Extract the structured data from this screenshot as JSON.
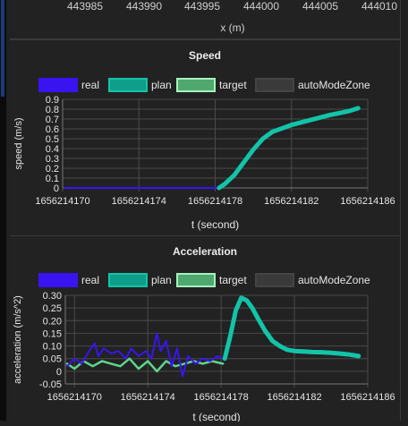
{
  "top_chart": {
    "xlabel": "x (m)",
    "x_ticks": [
      "443985",
      "443990",
      "443995",
      "444000",
      "444005",
      "444010"
    ]
  },
  "legend": [
    {
      "name": "real",
      "color": "#3a14f0"
    },
    {
      "name": "plan",
      "color": "#0f9e8a"
    },
    {
      "name": "target",
      "color": "#5fd48a"
    },
    {
      "name": "autoModeZone",
      "color": "#3a3a3a"
    }
  ],
  "chart_data": [
    {
      "type": "line",
      "title": "Speed",
      "xlabel": "t (second)",
      "ylabel": "speed (m/s)",
      "xlim": [
        1656214170,
        1656214186
      ],
      "ylim": [
        0,
        0.9
      ],
      "x_ticks": [
        "1656214170",
        "1656214174",
        "1656214178",
        "1656214182",
        "1656214186"
      ],
      "y_ticks": [
        "0",
        "0.1",
        "0.2",
        "0.3",
        "0.4",
        "0.5",
        "0.6",
        "0.7",
        "0.8",
        "0.9"
      ],
      "grid": true,
      "legend_position": "top",
      "series": [
        {
          "name": "real",
          "x": [
            1656214170.1,
            1656214172,
            1656214174,
            1656214176,
            1656214178.1
          ],
          "y": [
            0,
            0,
            0,
            0,
            0
          ]
        },
        {
          "name": "plan",
          "x": [
            1656214178.2,
            1656214178.5,
            1656214179,
            1656214179.5,
            1656214180,
            1656214180.5,
            1656214181,
            1656214182,
            1656214183,
            1656214184,
            1656214185,
            1656214185.5
          ],
          "y": [
            0,
            0.04,
            0.13,
            0.26,
            0.39,
            0.5,
            0.57,
            0.64,
            0.69,
            0.74,
            0.78,
            0.81
          ]
        },
        {
          "name": "target",
          "x": [
            1656214178.2,
            1656214178.4
          ],
          "y": [
            0.0,
            0.02
          ]
        }
      ]
    },
    {
      "type": "line",
      "title": "Acceleration",
      "xlabel": "t (second)",
      "ylabel": "acceleration (m/s^2)",
      "xlim": [
        1656214169.5,
        1656214186
      ],
      "ylim": [
        -0.05,
        0.3
      ],
      "x_ticks": [
        "1656214170",
        "1656214174",
        "1656214178",
        "1656214182",
        "1656214186"
      ],
      "y_ticks": [
        "-0.05",
        "0",
        "0.05",
        "0.10",
        "0.15",
        "0.20",
        "0.25",
        "0.30"
      ],
      "grid": true,
      "legend_position": "top",
      "series": [
        {
          "name": "real",
          "x": [
            1656214169.6,
            1656214170,
            1656214170.4,
            1656214170.8,
            1656214171.1,
            1656214171.3,
            1656214171.6,
            1656214172,
            1656214172.4,
            1656214172.8,
            1656214173.1,
            1656214173.5,
            1656214173.9,
            1656214174.2,
            1656214174.5,
            1656214174.7,
            1656214175,
            1656214175.3,
            1656214175.6,
            1656214175.9,
            1656214176.2,
            1656214176.6,
            1656214177,
            1656214177.4,
            1656214177.8,
            1656214178.1
          ],
          "y": [
            0.02,
            0.05,
            0.03,
            0.08,
            0.11,
            0.06,
            0.09,
            0.07,
            0.08,
            0.05,
            0.09,
            0.06,
            0.08,
            0.05,
            0.15,
            0.08,
            0.12,
            0.02,
            0.09,
            -0.02,
            0.06,
            0.03,
            0.05,
            0.04,
            0.06,
            0.05
          ]
        },
        {
          "name": "plan",
          "x": [
            1656214178.2,
            1656214178.5,
            1656214178.8,
            1656214179.1,
            1656214179.4,
            1656214179.7,
            1656214180,
            1656214180.4,
            1656214180.8,
            1656214181.2,
            1656214181.6,
            1656214182,
            1656214182.5,
            1656214183,
            1656214183.5,
            1656214184,
            1656214184.5,
            1656214185,
            1656214185.5
          ],
          "y": [
            0.05,
            0.14,
            0.24,
            0.29,
            0.28,
            0.25,
            0.21,
            0.16,
            0.12,
            0.1,
            0.085,
            0.08,
            0.078,
            0.076,
            0.075,
            0.073,
            0.07,
            0.066,
            0.06
          ]
        },
        {
          "name": "target",
          "x": [
            1656214169.6,
            1656214170,
            1656214170.5,
            1656214171,
            1656214171.5,
            1656214172,
            1656214172.5,
            1656214173,
            1656214173.5,
            1656214174,
            1656214174.5,
            1656214175,
            1656214175.5,
            1656214176,
            1656214176.5,
            1656214177,
            1656214177.5,
            1656214178.1
          ],
          "y": [
            0.03,
            0.01,
            0.04,
            0.02,
            0.04,
            0.03,
            0.02,
            0.05,
            0.01,
            0.04,
            0.0,
            0.04,
            0.02,
            0.03,
            0.04,
            0.03,
            0.04,
            0.03
          ]
        }
      ]
    }
  ]
}
